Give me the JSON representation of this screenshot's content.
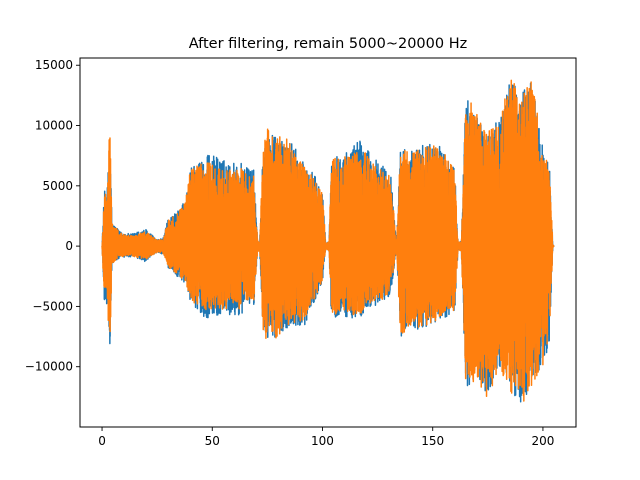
{
  "chart_data": {
    "type": "line",
    "title": "After filtering, remain 5000~20000 Hz",
    "xlabel": "",
    "ylabel": "",
    "xlim": [
      -10,
      215
    ],
    "ylim": [
      -15000,
      15600
    ],
    "x_ticks": [
      0,
      50,
      100,
      150,
      200
    ],
    "x_tick_labels": [
      "0",
      "50",
      "100",
      "150",
      "200"
    ],
    "y_ticks": [
      -10000,
      -5000,
      0,
      5000,
      10000,
      15000
    ],
    "y_tick_labels": [
      "−10000",
      "−5000",
      "0",
      "5000",
      "10000",
      "15000"
    ],
    "grid": false,
    "legend": "none",
    "series": [
      {
        "color": "#1f77b4",
        "envelope": [
          [
            0,
            50,
            -50
          ],
          [
            1,
            4500,
            -4500
          ],
          [
            2.5,
            5000,
            -5000
          ],
          [
            3.5,
            10100,
            -9000
          ],
          [
            4.5,
            2000,
            -1500
          ],
          [
            8,
            1200,
            -1000
          ],
          [
            13,
            1000,
            -900
          ],
          [
            20,
            1400,
            -1300
          ],
          [
            25,
            500,
            -500
          ],
          [
            28,
            700,
            -700
          ],
          [
            30,
            2400,
            -1800
          ],
          [
            34,
            2800,
            -2500
          ],
          [
            38,
            4000,
            -3200
          ],
          [
            40,
            6500,
            -4500
          ],
          [
            42,
            7000,
            -5000
          ],
          [
            47,
            7600,
            -6000
          ],
          [
            52,
            7500,
            -5800
          ],
          [
            55,
            7200,
            -5700
          ],
          [
            57,
            6800,
            -6000
          ],
          [
            60,
            7000,
            -5800
          ],
          [
            63,
            7100,
            -5700
          ],
          [
            66,
            6500,
            -5000
          ],
          [
            69,
            6300,
            -4900
          ],
          [
            70.5,
            500,
            -500
          ],
          [
            71.5,
            200,
            -300
          ],
          [
            73,
            8000,
            -7000
          ],
          [
            75,
            9500,
            -8000
          ],
          [
            80,
            9000,
            -7500
          ],
          [
            83,
            9500,
            -6800
          ],
          [
            88,
            8000,
            -6600
          ],
          [
            92,
            6800,
            -6500
          ],
          [
            96,
            6000,
            -4800
          ],
          [
            100,
            4500,
            -3000
          ],
          [
            101.5,
            200,
            -200
          ],
          [
            103,
            400,
            -400
          ],
          [
            104,
            7500,
            -6000
          ],
          [
            108,
            8000,
            -5800
          ],
          [
            112,
            8000,
            -6000
          ],
          [
            117,
            9000,
            -6000
          ],
          [
            122,
            7500,
            -5000
          ],
          [
            126,
            7000,
            -5000
          ],
          [
            131,
            6000,
            -4000
          ],
          [
            133.5,
            300,
            -300
          ],
          [
            135.5,
            8500,
            -7500
          ],
          [
            140,
            8000,
            -6800
          ],
          [
            145,
            8300,
            -7000
          ],
          [
            150,
            8800,
            -6500
          ],
          [
            155,
            8000,
            -6000
          ],
          [
            160,
            6500,
            -5500
          ],
          [
            161.5,
            300,
            -300
          ],
          [
            163,
            400,
            -400
          ],
          [
            165,
            12500,
            -11800
          ],
          [
            170,
            11000,
            -11000
          ],
          [
            175,
            9500,
            -12800
          ],
          [
            180,
            10500,
            -10000
          ],
          [
            185,
            14000,
            -12000
          ],
          [
            190,
            12500,
            -13200
          ],
          [
            195,
            14000,
            -11500
          ],
          [
            200,
            8000,
            -10000
          ],
          [
            203,
            6500,
            -8000
          ],
          [
            204.5,
            100,
            -100
          ],
          [
            205,
            0,
            0
          ]
        ]
      },
      {
        "color": "#ff7f0e",
        "envelope": [
          [
            0,
            50,
            -50
          ],
          [
            1,
            4400,
            -4400
          ],
          [
            2.5,
            5000,
            -5000
          ],
          [
            3.5,
            10200,
            -9000
          ],
          [
            4.5,
            2000,
            -1500
          ],
          [
            8,
            1100,
            -900
          ],
          [
            13,
            900,
            -800
          ],
          [
            20,
            1200,
            -1100
          ],
          [
            25,
            500,
            -500
          ],
          [
            28,
            650,
            -650
          ],
          [
            30,
            2300,
            -1700
          ],
          [
            34,
            2700,
            -2400
          ],
          [
            38,
            3900,
            -3100
          ],
          [
            40,
            6300,
            -4400
          ],
          [
            42,
            6700,
            -4800
          ],
          [
            47,
            7000,
            -5500
          ],
          [
            52,
            6800,
            -5200
          ],
          [
            55,
            6600,
            -5300
          ],
          [
            57,
            6300,
            -5500
          ],
          [
            60,
            6500,
            -5300
          ],
          [
            63,
            6600,
            -5200
          ],
          [
            66,
            6000,
            -4600
          ],
          [
            69,
            5800,
            -4500
          ],
          [
            70.5,
            500,
            -500
          ],
          [
            71.5,
            200,
            -300
          ],
          [
            73,
            8000,
            -7000
          ],
          [
            75,
            9800,
            -8100
          ],
          [
            80,
            9000,
            -7500
          ],
          [
            83,
            9400,
            -6800
          ],
          [
            88,
            7600,
            -6300
          ],
          [
            92,
            6500,
            -6200
          ],
          [
            96,
            5800,
            -4600
          ],
          [
            100,
            4300,
            -2900
          ],
          [
            101.5,
            200,
            -200
          ],
          [
            103,
            400,
            -400
          ],
          [
            104,
            7200,
            -5800
          ],
          [
            108,
            7600,
            -5500
          ],
          [
            112,
            7600,
            -5700
          ],
          [
            117,
            8500,
            -5700
          ],
          [
            122,
            7000,
            -4700
          ],
          [
            126,
            6600,
            -4700
          ],
          [
            131,
            5700,
            -3800
          ],
          [
            133.5,
            300,
            -300
          ],
          [
            135.5,
            8500,
            -7500
          ],
          [
            140,
            7800,
            -6600
          ],
          [
            145,
            8100,
            -6800
          ],
          [
            150,
            8700,
            -6400
          ],
          [
            155,
            7800,
            -5800
          ],
          [
            160,
            6300,
            -5300
          ],
          [
            161.5,
            300,
            -300
          ],
          [
            163,
            400,
            -400
          ],
          [
            165,
            12800,
            -11800
          ],
          [
            170,
            11000,
            -11000
          ],
          [
            175,
            9500,
            -12800
          ],
          [
            180,
            10500,
            -10000
          ],
          [
            185,
            14100,
            -12000
          ],
          [
            190,
            12500,
            -13500
          ],
          [
            195,
            14200,
            -11500
          ],
          [
            200,
            8000,
            -10000
          ],
          [
            203,
            6500,
            -8000
          ],
          [
            204.5,
            100,
            -100
          ],
          [
            205,
            0,
            0
          ]
        ]
      }
    ]
  }
}
